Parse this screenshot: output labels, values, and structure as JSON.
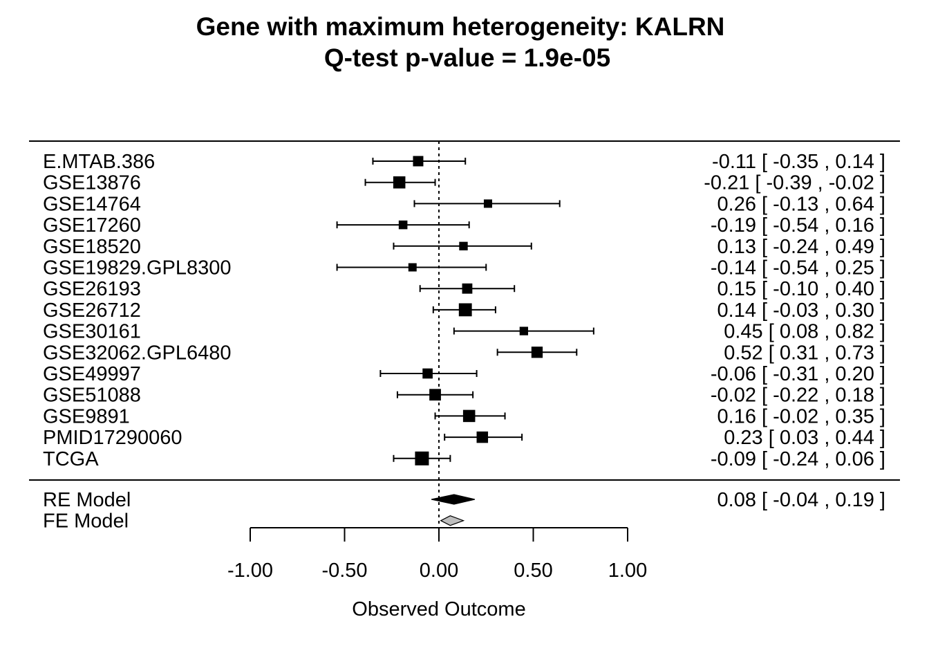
{
  "chart_data": {
    "type": "forest",
    "title": "Gene with maximum heterogeneity: KALRN",
    "subtitle": "Q-test p-value = 1.9e-05",
    "xlabel": "Observed Outcome",
    "xlim": [
      -1.0,
      1.0
    ],
    "xticks": [
      "-1.00",
      "-0.50",
      "0.00",
      "0.50",
      "1.00"
    ],
    "reference_line": 0,
    "studies": [
      {
        "name": "E.MTAB.386",
        "estimate": -0.11,
        "lower": -0.35,
        "upper": 0.14,
        "ci_text": "-0.11 [ -0.35 ,  0.14 ]"
      },
      {
        "name": "GSE13876",
        "estimate": -0.21,
        "lower": -0.39,
        "upper": -0.02,
        "ci_text": "-0.21 [ -0.39 , -0.02 ]"
      },
      {
        "name": "GSE14764",
        "estimate": 0.26,
        "lower": -0.13,
        "upper": 0.64,
        "ci_text": "0.26 [ -0.13 ,  0.64 ]"
      },
      {
        "name": "GSE17260",
        "estimate": -0.19,
        "lower": -0.54,
        "upper": 0.16,
        "ci_text": "-0.19 [ -0.54 ,  0.16 ]"
      },
      {
        "name": "GSE18520",
        "estimate": 0.13,
        "lower": -0.24,
        "upper": 0.49,
        "ci_text": "0.13 [ -0.24 ,  0.49 ]"
      },
      {
        "name": "GSE19829.GPL8300",
        "estimate": -0.14,
        "lower": -0.54,
        "upper": 0.25,
        "ci_text": "-0.14 [ -0.54 ,  0.25 ]"
      },
      {
        "name": "GSE26193",
        "estimate": 0.15,
        "lower": -0.1,
        "upper": 0.4,
        "ci_text": "0.15 [ -0.10 ,  0.40 ]"
      },
      {
        "name": "GSE26712",
        "estimate": 0.14,
        "lower": -0.03,
        "upper": 0.3,
        "ci_text": "0.14 [ -0.03 ,  0.30 ]"
      },
      {
        "name": "GSE30161",
        "estimate": 0.45,
        "lower": 0.08,
        "upper": 0.82,
        "ci_text": "0.45 [  0.08 ,  0.82 ]"
      },
      {
        "name": "GSE32062.GPL6480",
        "estimate": 0.52,
        "lower": 0.31,
        "upper": 0.73,
        "ci_text": "0.52 [  0.31 ,  0.73 ]"
      },
      {
        "name": "GSE49997",
        "estimate": -0.06,
        "lower": -0.31,
        "upper": 0.2,
        "ci_text": "-0.06 [ -0.31 ,  0.20 ]"
      },
      {
        "name": "GSE51088",
        "estimate": -0.02,
        "lower": -0.22,
        "upper": 0.18,
        "ci_text": "-0.02 [ -0.22 ,  0.18 ]"
      },
      {
        "name": "GSE9891",
        "estimate": 0.16,
        "lower": -0.02,
        "upper": 0.35,
        "ci_text": "0.16 [ -0.02 ,  0.35 ]"
      },
      {
        "name": "PMID17290060",
        "estimate": 0.23,
        "lower": 0.03,
        "upper": 0.44,
        "ci_text": "0.23 [  0.03 ,  0.44 ]"
      },
      {
        "name": "TCGA",
        "estimate": -0.09,
        "lower": -0.24,
        "upper": 0.06,
        "ci_text": "-0.09 [ -0.24 ,  0.06 ]"
      }
    ],
    "summaries": [
      {
        "name": "RE Model",
        "estimate": 0.08,
        "lower": -0.04,
        "upper": 0.19,
        "ci_text": "0.08 [ -0.04 ,  0.19 ]",
        "color": "#000000"
      },
      {
        "name": "FE Model",
        "estimate": 0.06,
        "lower": 0.01,
        "upper": 0.13,
        "ci_text": "",
        "color": "#bebebe"
      }
    ]
  }
}
